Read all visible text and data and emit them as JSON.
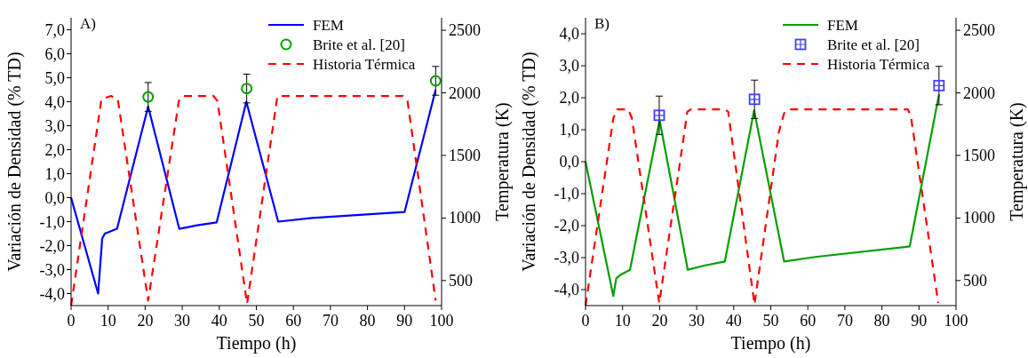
{
  "chart_data": [
    {
      "type": "line",
      "title": "A)",
      "xlabel": "Tiempo (h)",
      "ylabel": "Variación de Densidad (% TD)",
      "y2label": "Temperatura (K)",
      "xlim": [
        0,
        100
      ],
      "xticks": [
        0,
        10,
        20,
        30,
        40,
        50,
        60,
        70,
        80,
        90,
        100
      ],
      "ylim": [
        -4.5,
        7.5
      ],
      "yticks": [
        {
          "value": -4,
          "label": "-4,0"
        },
        {
          "value": -3,
          "label": "-3,0"
        },
        {
          "value": -2,
          "label": "-2,0"
        },
        {
          "value": -1,
          "label": "-1,0"
        },
        {
          "value": 0,
          "label": "0,0"
        },
        {
          "value": 1,
          "label": "1,0"
        },
        {
          "value": 2,
          "label": "2,0"
        },
        {
          "value": 3,
          "label": "3,0"
        },
        {
          "value": 4,
          "label": "4,0"
        },
        {
          "value": 5,
          "label": "5,0"
        },
        {
          "value": 6,
          "label": "6,0"
        },
        {
          "value": 7,
          "label": "7,0"
        }
      ],
      "y2lim": [
        300,
        2600
      ],
      "y2ticks": [
        500,
        1000,
        1500,
        2000,
        2500
      ],
      "legend": "top right",
      "grid": false,
      "series": [
        {
          "name": "FEM",
          "color": "#0000ff",
          "line_style": "solid",
          "x": [
            0,
            7.3,
            8.4,
            9.1,
            12.4,
            20.8,
            29.2,
            34,
            39.3,
            47.3,
            55.9,
            65,
            90,
            98.4
          ],
          "values": [
            0,
            -4.0,
            -1.7,
            -1.5,
            -1.3,
            3.8,
            -1.3,
            -1.15,
            -1.03,
            4.0,
            -1.0,
            -0.85,
            -0.6,
            4.5
          ]
        },
        {
          "name": "Brite et al. [20]",
          "type": "scatter",
          "color": "#00a000",
          "marker": "circle",
          "x": [
            20.8,
            47.4,
            98.4
          ],
          "values": [
            4.2,
            4.55,
            4.87
          ],
          "errors": [
            0.6,
            0.6,
            0.6
          ]
        },
        {
          "name": "Historia Térmica",
          "axis": "y2",
          "color": "#ff0000",
          "line_style": "dashed",
          "x": [
            0,
            8.2,
            10.8,
            12.6,
            20.8,
            29.1,
            30,
            38.4,
            39.5,
            47.5,
            55.7,
            89.5,
            90.8,
            98.4
          ],
          "values": [
            300,
            1950,
            1975,
            1950,
            340,
            1935,
            1975,
            1975,
            1935,
            315,
            1975,
            1975,
            1935,
            340
          ]
        }
      ]
    },
    {
      "type": "line",
      "title": "B)",
      "xlabel": "Tiempo (h)",
      "ylabel": "Variación de Densidad (% TD)",
      "y2label": "Temperatura (K)",
      "xlim": [
        0,
        100
      ],
      "xticks": [
        0,
        10,
        20,
        30,
        40,
        50,
        60,
        70,
        80,
        90,
        100
      ],
      "ylim": [
        -4.5,
        4.5
      ],
      "yticks": [
        {
          "value": -4,
          "label": "-4,0"
        },
        {
          "value": -3,
          "label": "-3,0"
        },
        {
          "value": -2,
          "label": "-2,0"
        },
        {
          "value": -1,
          "label": "-1,0"
        },
        {
          "value": 0,
          "label": "0,0"
        },
        {
          "value": 1,
          "label": "1,0"
        },
        {
          "value": 2,
          "label": "2,0"
        },
        {
          "value": 3,
          "label": "3,0"
        },
        {
          "value": 4,
          "label": "4,0"
        }
      ],
      "y2lim": [
        300,
        2600
      ],
      "y2ticks": [
        500,
        1000,
        1500,
        2000,
        2500
      ],
      "legend": "top right",
      "grid": false,
      "series": [
        {
          "name": "FEM",
          "color": "#00a000",
          "line_style": "solid",
          "x": [
            0,
            7.5,
            8.3,
            9.3,
            12,
            20,
            27.6,
            32,
            37.6,
            45.5,
            53.6,
            62,
            87.5,
            95.4
          ],
          "values": [
            0,
            -4.2,
            -3.65,
            -3.55,
            -3.38,
            1.3,
            -3.38,
            -3.25,
            -3.12,
            1.6,
            -3.12,
            -2.98,
            -2.65,
            2.1
          ]
        },
        {
          "name": "Brite et al. [20]",
          "type": "scatter",
          "color": "#4040ff",
          "marker": "square",
          "x": [
            19.9,
            45.6,
            95.4
          ],
          "values": [
            1.45,
            1.95,
            2.38
          ],
          "errors": [
            0.6,
            0.6,
            0.6
          ]
        },
        {
          "name": "Historia Térmica",
          "axis": "y2",
          "color": "#ff0000",
          "line_style": "dashed",
          "x": [
            0,
            7.5,
            8.5,
            11.5,
            12.5,
            19.9,
            27.5,
            28.5,
            37.5,
            38.5,
            45.6,
            52.2,
            53.6,
            54.9,
            87,
            87.8,
            95.2
          ],
          "values": [
            300,
            1797,
            1868,
            1868,
            1800,
            320,
            1850,
            1868,
            1868,
            1850,
            310,
            1690,
            1837,
            1868,
            1868,
            1816,
            320
          ]
        }
      ]
    }
  ]
}
